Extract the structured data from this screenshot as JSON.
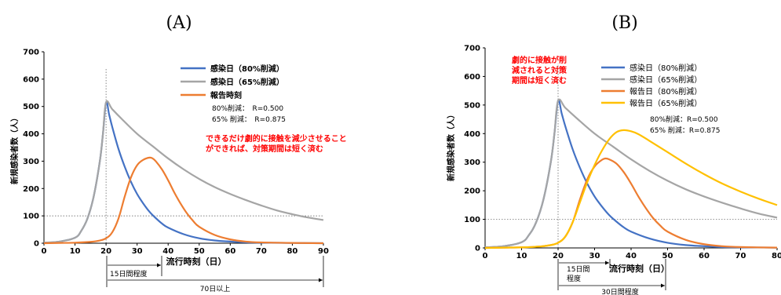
{
  "colors": {
    "blue": "#4472c4",
    "gray": "#a5a5a5",
    "orange": "#ed7d31",
    "yellow": "#ffc000",
    "red_text": "#ff0000",
    "axis": "#000000",
    "grid": "#d9d9d9"
  },
  "chart_data": [
    {
      "panel_label": "(A)",
      "type": "line",
      "ylabel": "新規感染者数（人）",
      "xlabel": "流行時刻（日）",
      "xlim": [
        0,
        90
      ],
      "ylim": [
        0,
        700
      ],
      "xticks": [
        0,
        10,
        20,
        30,
        40,
        50,
        60,
        70,
        80,
        90
      ],
      "yticks": [
        0,
        100,
        200,
        300,
        400,
        500,
        600,
        700
      ],
      "grid": false,
      "series": [
        {
          "name": "感染日（80%削減）",
          "color": "blue",
          "x": [
            0,
            5,
            10,
            12,
            14,
            16,
            18,
            19,
            20,
            21,
            22,
            24,
            26,
            28,
            30,
            32,
            34,
            36,
            38,
            40,
            45,
            50,
            55,
            60,
            65,
            70,
            80,
            90
          ],
          "y": [
            2,
            6,
            20,
            45,
            90,
            170,
            300,
            400,
            515,
            470,
            425,
            345,
            280,
            225,
            180,
            145,
            115,
            92,
            72,
            57,
            33,
            18,
            10,
            6,
            3,
            2,
            1,
            0
          ]
        },
        {
          "name": "感染日（65%削減）",
          "color": "gray",
          "x": [
            0,
            5,
            10,
            12,
            14,
            16,
            18,
            19,
            20,
            22,
            25,
            30,
            35,
            40,
            45,
            50,
            55,
            60,
            65,
            70,
            75,
            80,
            85,
            90
          ],
          "y": [
            2,
            6,
            20,
            45,
            90,
            170,
            300,
            400,
            515,
            490,
            455,
            400,
            355,
            310,
            270,
            235,
            205,
            180,
            158,
            138,
            120,
            106,
            94,
            85
          ]
        },
        {
          "name": "報告時刻",
          "color": "orange",
          "x": [
            0,
            5,
            10,
            15,
            18,
            20,
            22,
            24,
            26,
            28,
            30,
            32,
            34,
            35,
            36,
            38,
            40,
            42,
            44,
            46,
            48,
            50,
            55,
            60,
            65,
            70,
            80,
            90
          ],
          "y": [
            0,
            1,
            2,
            5,
            10,
            18,
            40,
            90,
            170,
            240,
            285,
            305,
            313,
            310,
            300,
            270,
            230,
            185,
            145,
            110,
            82,
            60,
            30,
            14,
            6,
            3,
            1,
            0
          ]
        }
      ],
      "legend": [
        "感染日（80%削減）",
        "感染日（65%削減）",
        "報告時刻"
      ],
      "legend_position": "top-right",
      "annotations": {
        "r80": "80%削減：　R=0.500",
        "r65": "65% 削減：　R=0.875",
        "note_line1": "できるだけ劇的に接触を減少させること",
        "note_line2": "ができれば、対策期間は短く済む",
        "span1": "15日間程度",
        "span2": "70日以上"
      },
      "reference_lines": {
        "x": 20,
        "y": 100
      }
    },
    {
      "panel_label": "(B)",
      "type": "line",
      "ylabel": "新規感染者数（人）",
      "xlabel": "流行時刻（日）",
      "xlim": [
        0,
        80
      ],
      "ylim": [
        0,
        700
      ],
      "xticks": [
        0,
        10,
        20,
        30,
        40,
        50,
        60,
        70,
        80
      ],
      "yticks": [
        0,
        100,
        200,
        300,
        400,
        500,
        600,
        700
      ],
      "grid": false,
      "series": [
        {
          "name": "感染日（80%削減）",
          "color": "blue",
          "x": [
            0,
            5,
            10,
            12,
            14,
            16,
            18,
            19,
            20,
            21,
            22,
            24,
            26,
            28,
            30,
            32,
            34,
            36,
            38,
            40,
            45,
            50,
            55,
            60,
            65,
            70,
            80
          ],
          "y": [
            2,
            6,
            20,
            45,
            90,
            170,
            300,
            400,
            515,
            470,
            425,
            345,
            280,
            225,
            180,
            145,
            115,
            92,
            72,
            57,
            33,
            18,
            10,
            6,
            3,
            2,
            1
          ]
        },
        {
          "name": "感染日（65%削減）",
          "color": "gray",
          "x": [
            0,
            5,
            10,
            12,
            14,
            16,
            18,
            19,
            20,
            22,
            25,
            30,
            35,
            40,
            45,
            50,
            55,
            60,
            65,
            70,
            75,
            80
          ],
          "y": [
            2,
            6,
            20,
            45,
            90,
            170,
            300,
            400,
            515,
            490,
            455,
            400,
            355,
            310,
            270,
            235,
            205,
            180,
            158,
            138,
            120,
            106
          ]
        },
        {
          "name": "報告日（80%削減）",
          "color": "orange",
          "x": [
            0,
            5,
            10,
            15,
            18,
            20,
            22,
            24,
            26,
            28,
            30,
            32,
            33,
            34,
            36,
            38,
            40,
            42,
            44,
            46,
            48,
            50,
            55,
            60,
            65,
            70,
            80
          ],
          "y": [
            0,
            1,
            2,
            5,
            10,
            18,
            40,
            90,
            170,
            240,
            285,
            308,
            313,
            310,
            295,
            265,
            225,
            180,
            140,
            105,
            78,
            57,
            28,
            13,
            6,
            3,
            1
          ]
        },
        {
          "name": "報告日（65%削減）",
          "color": "yellow",
          "x": [
            0,
            5,
            10,
            15,
            18,
            20,
            22,
            24,
            26,
            28,
            30,
            32,
            34,
            36,
            38,
            40,
            42,
            45,
            50,
            55,
            60,
            65,
            70,
            75,
            80
          ],
          "y": [
            0,
            1,
            2,
            5,
            10,
            18,
            40,
            90,
            160,
            230,
            290,
            340,
            380,
            405,
            412,
            408,
            398,
            375,
            335,
            295,
            258,
            225,
            197,
            172,
            150
          ]
        }
      ],
      "legend": [
        "感染日（80%削減）",
        "感染日（65%削減）",
        "報告日（80%削減）",
        "報告日（65%削減）"
      ],
      "legend_position": "top-right",
      "annotations": {
        "r80": "80%削減：R=0.500",
        "r65": "65% 削減：R=0.875",
        "note_line1": "劇的に接触が削",
        "note_line2": "減されると対策",
        "note_line3": "期間は短く済む",
        "span1_line1": "15日間",
        "span1_line2": "程度",
        "span2": "30日間程度"
      },
      "reference_lines": {
        "x": 20,
        "y": 100
      }
    }
  ]
}
